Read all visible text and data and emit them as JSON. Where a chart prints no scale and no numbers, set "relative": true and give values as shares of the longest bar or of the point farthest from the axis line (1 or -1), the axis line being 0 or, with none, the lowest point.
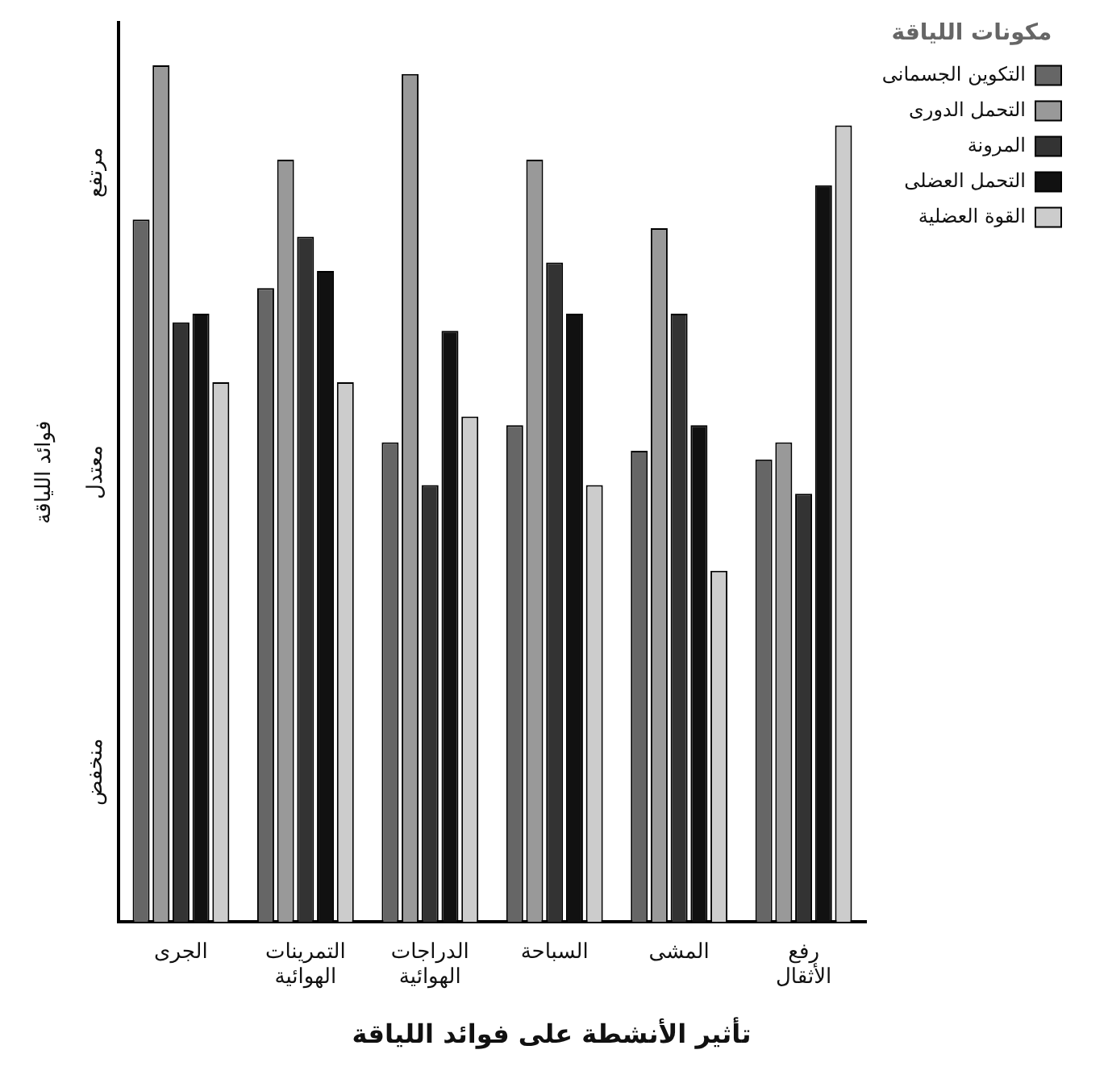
{
  "chart_data": {
    "type": "bar",
    "title": "تأثير الأنشطة على فوائد اللياقة",
    "ylabel": "فوائد اللياقة",
    "legend_title": "مكونات اللياقة",
    "relative": true,
    "legend": "top right",
    "grid": false,
    "annotations": [
      "مرتفع",
      "معتدل",
      "منخفض"
    ],
    "categories": [
      "الجرى",
      "التمرينات الهوائية",
      "الدراجات الهوائية",
      "السباحة",
      "المشى",
      "رفع الأثقال"
    ],
    "series": [
      {
        "name": "التكوين الجسمانى",
        "color": "#666666",
        "values": [
          0.82,
          0.74,
          0.56,
          0.58,
          0.55,
          0.54
        ]
      },
      {
        "name": "التحمل الدورى",
        "color": "#999999",
        "values": [
          1,
          0.89,
          0.99,
          0.89,
          0.81,
          0.56
        ]
      },
      {
        "name": "المرونة",
        "color": "#333333",
        "values": [
          0.7,
          0.8,
          0.51,
          0.77,
          0.71,
          0.5
        ]
      },
      {
        "name": "التحمل العضلى",
        "color": "#111111",
        "values": [
          0.71,
          0.76,
          0.69,
          0.71,
          0.58,
          0.86
        ]
      },
      {
        "name": "القوة العضلية",
        "color": "#cccccc",
        "values": [
          0.63,
          0.63,
          0.59,
          0.51,
          0.41,
          0.93
        ]
      }
    ]
  }
}
